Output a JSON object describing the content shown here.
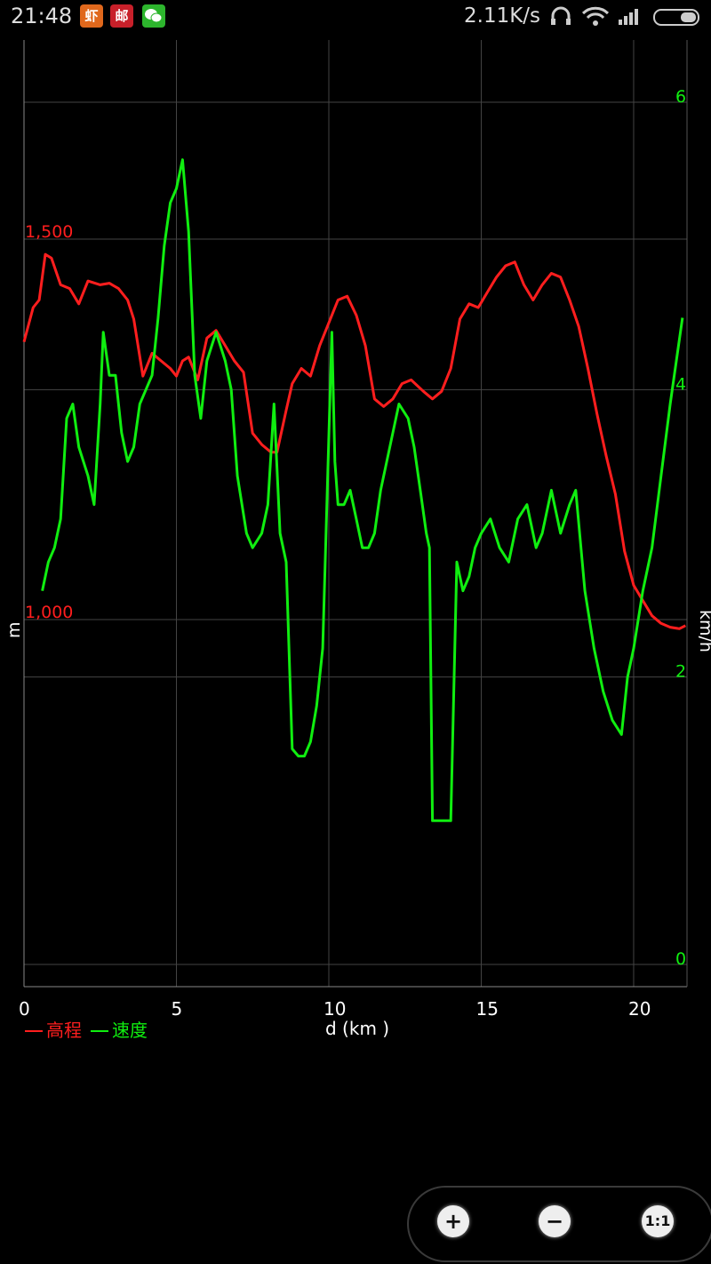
{
  "status_bar": {
    "time": "21:48",
    "net_speed": "2.11K/s",
    "apps": [
      {
        "name": "xia-app-icon",
        "glyph": "虾",
        "color": "#e0681c"
      },
      {
        "name": "you-app-icon",
        "glyph": "邮",
        "color": "#c8202a"
      },
      {
        "name": "wechat-app-icon",
        "glyph": "",
        "color": "#2db52d"
      }
    ]
  },
  "chart_data": {
    "type": "line",
    "xlabel": "d (km )",
    "ylabel_left": "m",
    "ylabel_right": "km/h",
    "x_ticks": [
      "0",
      "5",
      "10",
      "15",
      "20"
    ],
    "left_ticks": [
      "1,000",
      "1,500"
    ],
    "right_ticks": [
      "0",
      "2",
      "4",
      "6"
    ],
    "xlim": [
      0,
      21.75
    ],
    "left_ylim": [
      1000,
      1500
    ],
    "right_ylim": [
      0,
      6
    ],
    "legend": [
      {
        "label": "高程",
        "color": "#ff1e1e"
      },
      {
        "label": "速度",
        "color": "#10ee10"
      }
    ],
    "series": [
      {
        "name": "高程",
        "axis": "left",
        "color": "#ff1e1e",
        "x": [
          0,
          0.3,
          0.5,
          0.7,
          0.9,
          1.2,
          1.5,
          1.8,
          2.1,
          2.5,
          2.8,
          3.1,
          3.4,
          3.6,
          3.9,
          4.2,
          4.5,
          4.8,
          5,
          5.2,
          5.4,
          5.7,
          6,
          6.3,
          6.6,
          6.9,
          7.2,
          7.5,
          7.8,
          8.1,
          8.3,
          8.6,
          8.8,
          9.1,
          9.4,
          9.7,
          10,
          10.3,
          10.6,
          10.9,
          11.2,
          11.5,
          11.8,
          12.1,
          12.4,
          12.7,
          13.1,
          13.4,
          13.7,
          14,
          14.3,
          14.6,
          14.9,
          15.2,
          15.5,
          15.8,
          16.1,
          16.4,
          16.7,
          17,
          17.3,
          17.6,
          17.9,
          18.2,
          18.5,
          18.8,
          19.1,
          19.4,
          19.7,
          20,
          20.3,
          20.6,
          20.9,
          21.2,
          21.5,
          21.7
        ],
        "values": [
          1365,
          1410,
          1420,
          1480,
          1475,
          1440,
          1435,
          1415,
          1445,
          1440,
          1442,
          1435,
          1420,
          1395,
          1320,
          1350,
          1340,
          1330,
          1320,
          1340,
          1345,
          1315,
          1370,
          1380,
          1360,
          1340,
          1325,
          1245,
          1230,
          1220,
          1220,
          1275,
          1310,
          1330,
          1320,
          1360,
          1390,
          1420,
          1425,
          1400,
          1360,
          1290,
          1280,
          1290,
          1310,
          1315,
          1300,
          1290,
          1300,
          1330,
          1395,
          1415,
          1410,
          1430,
          1450,
          1465,
          1470,
          1440,
          1420,
          1440,
          1455,
          1450,
          1420,
          1385,
          1330,
          1270,
          1215,
          1165,
          1090,
          1045,
          1025,
          1005,
          995,
          990,
          988,
          992
        ]
      },
      {
        "name": "速度",
        "axis": "right",
        "color": "#10ee10",
        "x": [
          0.6,
          0.8,
          1,
          1.2,
          1.4,
          1.6,
          1.8,
          2.1,
          2.3,
          2.5,
          2.6,
          2.8,
          3,
          3.2,
          3.4,
          3.6,
          3.8,
          4,
          4.2,
          4.4,
          4.6,
          4.8,
          5,
          5.2,
          5.4,
          5.6,
          5.8,
          6,
          6.3,
          6.6,
          6.8,
          7,
          7.3,
          7.5,
          7.8,
          8,
          8.2,
          8.4,
          8.6,
          8.8,
          9,
          9.2,
          9.4,
          9.6,
          9.8,
          10.1,
          10.2,
          10.3,
          10.5,
          10.7,
          10.9,
          11.1,
          11.3,
          11.5,
          11.7,
          12,
          12.3,
          12.6,
          12.8,
          13,
          13.2,
          13.3,
          13.4,
          13.6,
          13.8,
          14,
          14.2,
          14.4,
          14.6,
          14.8,
          15,
          15.3,
          15.6,
          15.9,
          16.2,
          16.5,
          16.8,
          17,
          17.3,
          17.6,
          17.9,
          18.1,
          18.4,
          18.7,
          19,
          19.3,
          19.6,
          19.8,
          20,
          20.3,
          20.6,
          20.9,
          21.2,
          21.4,
          21.6
        ],
        "values": [
          2.6,
          2.8,
          2.9,
          3.1,
          3.8,
          3.9,
          3.6,
          3.4,
          3.2,
          3.9,
          4.4,
          4.1,
          4.1,
          3.7,
          3.5,
          3.6,
          3.9,
          4.0,
          4.1,
          4.5,
          5.0,
          5.3,
          5.4,
          5.6,
          5.1,
          4.1,
          3.8,
          4.2,
          4.4,
          4.2,
          4.0,
          3.4,
          3.0,
          2.9,
          3.0,
          3.2,
          3.9,
          3.0,
          2.8,
          1.5,
          1.45,
          1.45,
          1.55,
          1.8,
          2.2,
          4.4,
          3.5,
          3.2,
          3.2,
          3.3,
          3.1,
          2.9,
          2.9,
          3.0,
          3.3,
          3.6,
          3.9,
          3.8,
          3.6,
          3.3,
          3.0,
          2.9,
          1.0,
          1.0,
          1.0,
          1.0,
          2.8,
          2.6,
          2.7,
          2.9,
          3.0,
          3.1,
          2.9,
          2.8,
          3.1,
          3.2,
          2.9,
          3.0,
          3.3,
          3.0,
          3.2,
          3.3,
          2.6,
          2.2,
          1.9,
          1.7,
          1.6,
          2.0,
          2.2,
          2.6,
          2.9,
          3.4,
          3.9,
          4.2,
          4.5
        ]
      }
    ]
  },
  "zoom_controls": {
    "zoom_in": "+",
    "zoom_out": "−",
    "reset": "1:1"
  }
}
